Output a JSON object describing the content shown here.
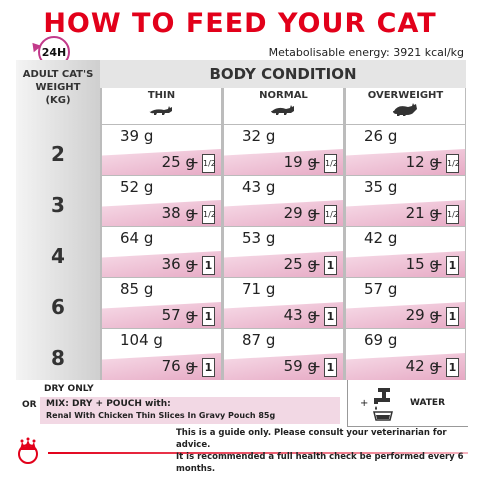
{
  "title": "HOW TO FEED YOUR CAT",
  "clock_label": "24H",
  "energy": "Metabolisable energy: 3921 kcal/kg",
  "weight_header": [
    "ADULT CAT'S",
    "WEIGHT",
    "(KG)"
  ],
  "body_condition": "BODY CONDITION",
  "columns": [
    "THIN",
    "NORMAL",
    "OVERWEIGHT"
  ],
  "weights": [
    "2",
    "3",
    "4",
    "6",
    "8"
  ],
  "rows": [
    {
      "thin": {
        "dry": "39 g",
        "mix": "25 g",
        "pouch": "1/2"
      },
      "normal": {
        "dry": "32 g",
        "mix": "19 g",
        "pouch": "1/2"
      },
      "over": {
        "dry": "26 g",
        "mix": "12 g",
        "pouch": "1/2"
      }
    },
    {
      "thin": {
        "dry": "52 g",
        "mix": "38 g",
        "pouch": "1/2"
      },
      "normal": {
        "dry": "43 g",
        "mix": "29 g",
        "pouch": "1/2"
      },
      "over": {
        "dry": "35 g",
        "mix": "21 g",
        "pouch": "1/2"
      }
    },
    {
      "thin": {
        "dry": "64 g",
        "mix": "36 g",
        "pouch": "1"
      },
      "normal": {
        "dry": "53 g",
        "mix": "25 g",
        "pouch": "1"
      },
      "over": {
        "dry": "42 g",
        "mix": "15 g",
        "pouch": "1"
      }
    },
    {
      "thin": {
        "dry": "85 g",
        "mix": "57 g",
        "pouch": "1"
      },
      "normal": {
        "dry": "71 g",
        "mix": "43 g",
        "pouch": "1"
      },
      "over": {
        "dry": "57 g",
        "mix": "29 g",
        "pouch": "1"
      }
    },
    {
      "thin": {
        "dry": "104 g",
        "mix": "76 g",
        "pouch": "1"
      },
      "normal": {
        "dry": "87 g",
        "mix": "59 g",
        "pouch": "1"
      },
      "over": {
        "dry": "69 g",
        "mix": "42 g",
        "pouch": "1"
      }
    }
  ],
  "plus": "+",
  "legend": {
    "dry_only": "DRY ONLY",
    "or": "OR",
    "mix_line1": "MIX: DRY + POUCH with:",
    "mix_line2": "Renal With Chicken Thin Slices In Gravy Pouch 85g",
    "water": "WATER",
    "water_plus": "+"
  },
  "guide_line1": "This is a guide only. Please consult your veterinarian for advice.",
  "guide_line2": "It is recommended a full health check be performed every 6 months.",
  "colors": {
    "brand_red": "#e2001a",
    "pink": "#e6a9c4",
    "clock": "#c23a8a"
  }
}
